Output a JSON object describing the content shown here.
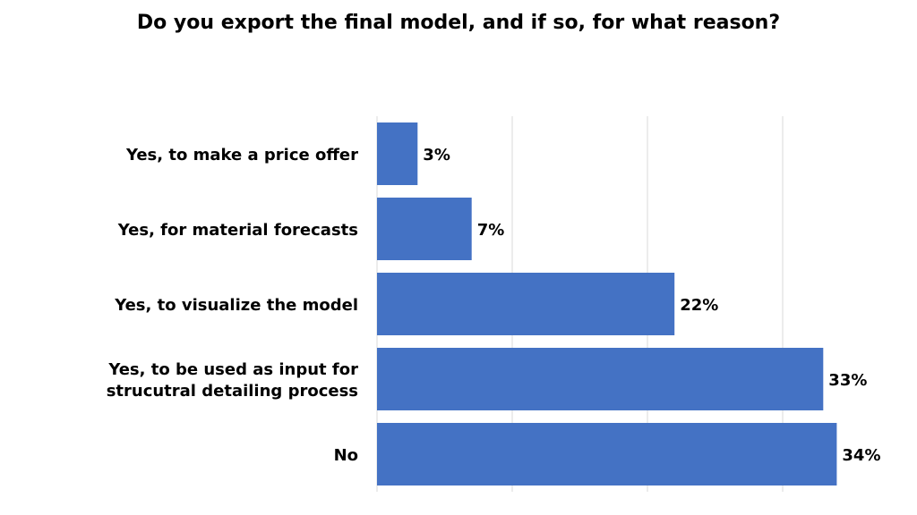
{
  "chart_data": {
    "type": "bar",
    "orientation": "horizontal",
    "title": "Do you export the final model, and if so, for what reason?",
    "categories": [
      [
        "Yes, to make a price offer"
      ],
      [
        "Yes, for material forecasts"
      ],
      [
        "Yes, to visualize the model"
      ],
      [
        "Yes, to be used as input for",
        "strucutral detailing process"
      ],
      [
        "No"
      ]
    ],
    "values": [
      3,
      7,
      22,
      33,
      34
    ],
    "value_labels": [
      "3%",
      "7%",
      "22%",
      "33%",
      "34%"
    ],
    "unit": "%",
    "xlim": [
      0,
      40
    ],
    "grid_step": 10,
    "grid": true,
    "legend": "none",
    "bar_color": "#4472c4"
  }
}
